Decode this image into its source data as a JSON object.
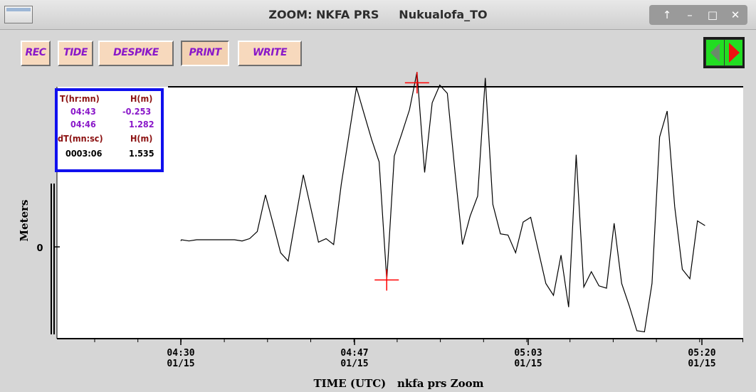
{
  "window": {
    "title": "ZOOM: NKFA PRS     Nukualofa_TO",
    "controls": [
      "up-arrow",
      "minimize",
      "maximize",
      "close"
    ],
    "control_glyphs": [
      "↑",
      "–",
      "□",
      "✕"
    ]
  },
  "toolbar": {
    "buttons": [
      {
        "label": "REC",
        "pressed": false
      },
      {
        "label": "TIDE",
        "pressed": false
      },
      {
        "label": "DESPIKE",
        "pressed": false
      },
      {
        "label": "PRINT",
        "pressed": true
      },
      {
        "label": "WRITE",
        "pressed": false
      }
    ],
    "nav": {
      "prev": "left-arrow-icon",
      "next": "right-arrow-icon"
    }
  },
  "readout": {
    "col1_header": "T(hr:mn)",
    "col2_header": "H(m)",
    "row1": {
      "t": "04:43",
      "h": "-0.253"
    },
    "row2": {
      "t": "04:46",
      "h": "1.282"
    },
    "diff_header1": "dT(mn:sc)",
    "diff_header2": "H(m)",
    "diff": {
      "dt": "0003:06",
      "dh": "1.535"
    }
  },
  "colors": {
    "button_bg": "#f7d9bd",
    "button_text": "#8a18c9",
    "readout_border": "#1010ee",
    "readout_header": "#8b1010",
    "readout_values": "#8a18c9",
    "cursor": "#ff0000",
    "nav_green": "#22dd22",
    "nav_red": "#ee1111"
  },
  "chart_data": {
    "type": "line",
    "xlabel": "TIME (UTC)   nkfa prs Zoom",
    "ylabel": "Meters",
    "y_tick_labels": [
      "0"
    ],
    "x_tick_labels": [
      {
        "time": "04:30",
        "date": "01/15"
      },
      {
        "time": "04:47",
        "date": "01/15"
      },
      {
        "time": "05:03",
        "date": "01/15"
      },
      {
        "time": "05:20",
        "date": "01/15"
      }
    ],
    "x_range_minutes": [
      4.583,
      5.417
    ],
    "series": [
      {
        "values": [
          [
            4.5,
            0.05
          ],
          [
            4.501,
            0.06
          ],
          [
            4.513,
            0.05
          ],
          [
            4.525,
            0.06
          ],
          [
            4.537,
            0.06
          ],
          [
            4.549,
            0.06
          ],
          [
            4.561,
            0.06
          ],
          [
            4.573,
            0.06
          ],
          [
            4.585,
            0.06
          ],
          [
            4.597,
            0.05
          ],
          [
            4.609,
            0.07
          ],
          [
            4.621,
            0.13
          ],
          [
            4.634,
            0.44
          ],
          [
            4.646,
            0.2
          ],
          [
            4.658,
            -0.05
          ],
          [
            4.67,
            -0.12
          ],
          [
            4.694,
            0.61
          ],
          [
            4.718,
            0.04
          ],
          [
            4.73,
            0.07
          ],
          [
            4.742,
            0.02
          ],
          [
            4.754,
            0.53
          ],
          [
            4.778,
            1.35
          ],
          [
            4.79,
            1.13
          ],
          [
            4.802,
            0.91
          ],
          [
            4.814,
            0.72
          ],
          [
            4.826,
            -0.28
          ],
          [
            4.838,
            0.77
          ],
          [
            4.85,
            0.96
          ],
          [
            4.862,
            1.16
          ],
          [
            4.874,
            1.48
          ],
          [
            4.886,
            0.63
          ],
          [
            4.898,
            1.22
          ],
          [
            4.91,
            1.37
          ],
          [
            4.922,
            1.3
          ],
          [
            4.934,
            0.64
          ],
          [
            4.946,
            0.02
          ],
          [
            4.958,
            0.26
          ],
          [
            4.97,
            0.43
          ],
          [
            4.982,
            1.43
          ],
          [
            4.994,
            0.36
          ],
          [
            5.006,
            0.11
          ],
          [
            5.018,
            0.1
          ],
          [
            5.03,
            -0.05
          ],
          [
            5.042,
            0.21
          ],
          [
            5.054,
            0.25
          ],
          [
            5.066,
            -0.03
          ],
          [
            5.078,
            -0.31
          ],
          [
            5.09,
            -0.41
          ],
          [
            5.102,
            -0.07
          ],
          [
            5.114,
            -0.51
          ],
          [
            5.126,
            0.78
          ],
          [
            5.138,
            -0.34
          ],
          [
            5.15,
            -0.21
          ],
          [
            5.162,
            -0.33
          ],
          [
            5.174,
            -0.35
          ],
          [
            5.186,
            0.2
          ],
          [
            5.198,
            -0.31
          ],
          [
            5.21,
            -0.5
          ],
          [
            5.222,
            -0.71
          ],
          [
            5.234,
            -0.72
          ],
          [
            5.246,
            -0.31
          ],
          [
            5.258,
            0.93
          ],
          [
            5.27,
            1.15
          ],
          [
            5.282,
            0.34
          ],
          [
            5.294,
            -0.19
          ],
          [
            5.306,
            -0.27
          ],
          [
            5.318,
            0.22
          ],
          [
            5.33,
            0.18
          ]
        ]
      }
    ],
    "cursors": [
      {
        "time": "04:43",
        "height": -0.253
      },
      {
        "time": "04:46",
        "height": 1.282
      }
    ]
  }
}
